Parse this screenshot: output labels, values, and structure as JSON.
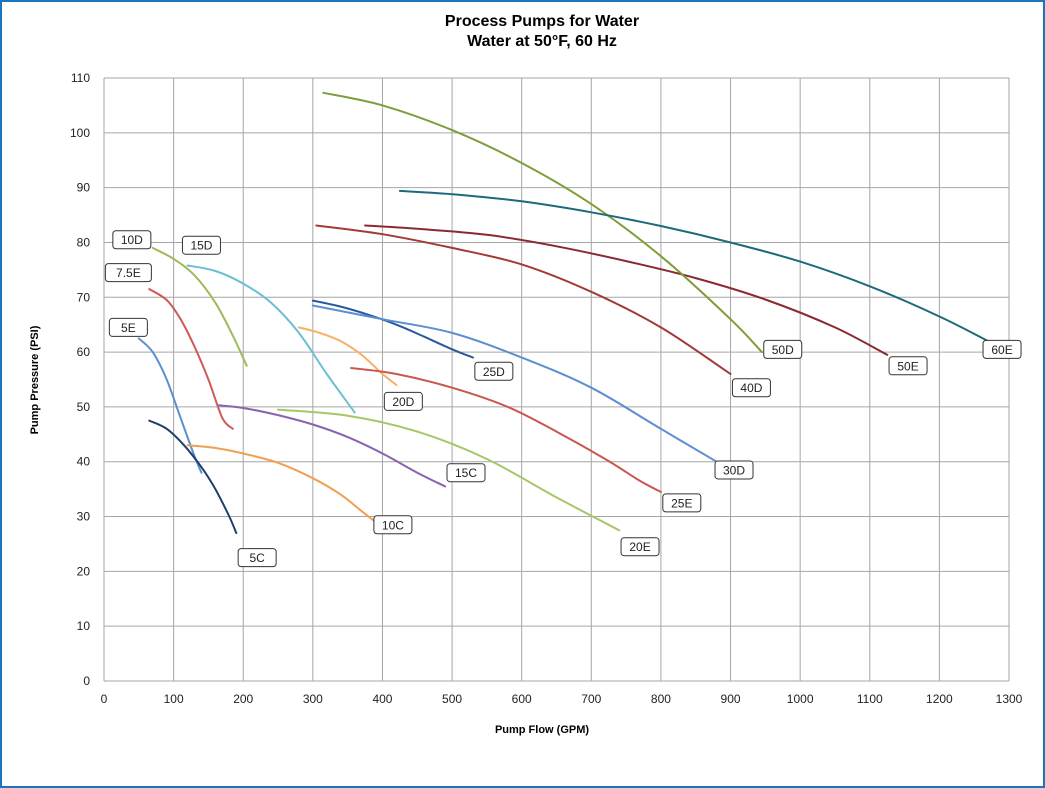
{
  "chart_data": {
    "type": "line",
    "title": "Process Pumps for Water",
    "subtitle": "Water at 50°F, 60 Hz",
    "xlabel": "Pump Flow  (GPM)",
    "ylabel": "Pump Pressure  (PSI)",
    "xlim": [
      0,
      1300
    ],
    "ylim": [
      0,
      110
    ],
    "x_ticks": [
      0,
      100,
      200,
      300,
      400,
      500,
      600,
      700,
      800,
      900,
      1000,
      1100,
      1200,
      1300
    ],
    "y_ticks": [
      0,
      10,
      20,
      30,
      40,
      50,
      60,
      70,
      80,
      90,
      100,
      110
    ],
    "grid": true,
    "legend": "none",
    "title_color": "#1b75bc",
    "series": [
      {
        "name": "5E",
        "color": "#5b8fd0",
        "points": [
          [
            50,
            62.5
          ],
          [
            70,
            60
          ],
          [
            90,
            55
          ],
          [
            110,
            48
          ],
          [
            130,
            41
          ],
          [
            140,
            38
          ]
        ],
        "label_pos": [
          35,
          64.5
        ]
      },
      {
        "name": "7.5E",
        "color": "#cf5a5a",
        "points": [
          [
            65,
            71.5
          ],
          [
            90,
            69.5
          ],
          [
            110,
            66
          ],
          [
            130,
            61
          ],
          [
            150,
            55
          ],
          [
            170,
            48
          ],
          [
            185,
            46
          ]
        ],
        "label_pos": [
          35,
          74.5
        ]
      },
      {
        "name": "10D",
        "color": "#9fba5a",
        "points": [
          [
            70,
            79
          ],
          [
            100,
            77
          ],
          [
            130,
            74
          ],
          [
            160,
            69
          ],
          [
            185,
            63
          ],
          [
            205,
            57.5
          ]
        ],
        "label_pos": [
          40,
          80.5
        ]
      },
      {
        "name": "15D",
        "color": "#6bbfd0",
        "points": [
          [
            120,
            75.8
          ],
          [
            160,
            74.8
          ],
          [
            200,
            72.5
          ],
          [
            240,
            69
          ],
          [
            280,
            63.5
          ],
          [
            320,
            56
          ],
          [
            360,
            49
          ]
        ],
        "label_pos": [
          140,
          79.5
        ]
      },
      {
        "name": "5C",
        "color": "#1f3f6b",
        "points": [
          [
            65,
            47.5
          ],
          [
            90,
            46
          ],
          [
            115,
            43
          ],
          [
            140,
            39
          ],
          [
            160,
            35
          ],
          [
            180,
            30
          ],
          [
            190,
            27
          ]
        ],
        "label_pos": [
          220,
          22.5
        ]
      },
      {
        "name": "10C",
        "color": "#f0a050",
        "points": [
          [
            120,
            43
          ],
          [
            160,
            42.5
          ],
          [
            200,
            41.5
          ],
          [
            250,
            39.8
          ],
          [
            300,
            37
          ],
          [
            340,
            34
          ],
          [
            370,
            31
          ],
          [
            390,
            29
          ]
        ],
        "label_pos": [
          415,
          28.5
        ]
      },
      {
        "name": "15C",
        "color": "#8a62b0",
        "points": [
          [
            165,
            50.3
          ],
          [
            200,
            49.8
          ],
          [
            250,
            48.5
          ],
          [
            300,
            46.8
          ],
          [
            350,
            44.5
          ],
          [
            400,
            41.5
          ],
          [
            450,
            38
          ],
          [
            490,
            35.5
          ]
        ],
        "label_pos": [
          520,
          38
        ]
      },
      {
        "name": "20D",
        "color": "#f6b06a",
        "points": [
          [
            280,
            64.5
          ],
          [
            310,
            63.5
          ],
          [
            340,
            62
          ],
          [
            370,
            59.5
          ],
          [
            400,
            56
          ],
          [
            420,
            54
          ]
        ],
        "label_pos": [
          430,
          51
        ]
      },
      {
        "name": "25D",
        "color": "#2a5a9a",
        "points": [
          [
            300,
            69.4
          ],
          [
            340,
            68.3
          ],
          [
            380,
            66.8
          ],
          [
            420,
            65
          ],
          [
            460,
            62.8
          ],
          [
            500,
            60.5
          ],
          [
            530,
            59
          ]
        ],
        "label_pos": [
          560,
          56.5
        ]
      },
      {
        "name": "20E",
        "color": "#a6c767",
        "points": [
          [
            250,
            49.5
          ],
          [
            350,
            48.4
          ],
          [
            450,
            45.5
          ],
          [
            550,
            40.5
          ],
          [
            650,
            33.5
          ],
          [
            740,
            27.5
          ]
        ],
        "label_pos": [
          770,
          24.5
        ]
      },
      {
        "name": "25E",
        "color": "#c9564f",
        "points": [
          [
            355,
            57.1
          ],
          [
            420,
            56
          ],
          [
            500,
            53.5
          ],
          [
            580,
            50
          ],
          [
            650,
            45.5
          ],
          [
            720,
            40.5
          ],
          [
            770,
            36.5
          ],
          [
            800,
            34.5
          ]
        ],
        "label_pos": [
          830,
          32.5
        ]
      },
      {
        "name": "30D",
        "color": "#5b8fd0",
        "points": [
          [
            300,
            68.5
          ],
          [
            400,
            66
          ],
          [
            500,
            63.5
          ],
          [
            600,
            59
          ],
          [
            700,
            53.5
          ],
          [
            800,
            46
          ],
          [
            880,
            40
          ]
        ],
        "label_pos": [
          905,
          38.5
        ]
      },
      {
        "name": "40D",
        "color": "#a33a3a",
        "points": [
          [
            305,
            83.1
          ],
          [
            400,
            81.5
          ],
          [
            500,
            79
          ],
          [
            600,
            76
          ],
          [
            700,
            71
          ],
          [
            800,
            64.5
          ],
          [
            900,
            56
          ]
        ],
        "label_pos": [
          930,
          53.5
        ]
      },
      {
        "name": "50E",
        "color": "#8a2a30",
        "points": [
          [
            375,
            83.1
          ],
          [
            450,
            82.5
          ],
          [
            550,
            81.4
          ],
          [
            650,
            79.3
          ],
          [
            750,
            76.6
          ],
          [
            850,
            73.5
          ],
          [
            950,
            69.6
          ],
          [
            1050,
            64.5
          ],
          [
            1125,
            59.5
          ]
        ],
        "label_pos": [
          1155,
          57.5
        ]
      },
      {
        "name": "50D",
        "color": "#7e9e3c",
        "points": [
          [
            315,
            107.3
          ],
          [
            400,
            105
          ],
          [
            500,
            100.5
          ],
          [
            600,
            94.5
          ],
          [
            700,
            87
          ],
          [
            800,
            77.5
          ],
          [
            900,
            66
          ],
          [
            945,
            60
          ]
        ],
        "label_pos": [
          975,
          60.5
        ]
      },
      {
        "name": "60E",
        "color": "#1d6b7a",
        "points": [
          [
            425,
            89.4
          ],
          [
            500,
            88.8
          ],
          [
            600,
            87.5
          ],
          [
            700,
            85.5
          ],
          [
            800,
            83
          ],
          [
            900,
            80
          ],
          [
            1000,
            76.5
          ],
          [
            1100,
            72
          ],
          [
            1200,
            66.5
          ],
          [
            1270,
            62
          ]
        ],
        "label_pos": [
          1290,
          60.5
        ]
      }
    ]
  }
}
